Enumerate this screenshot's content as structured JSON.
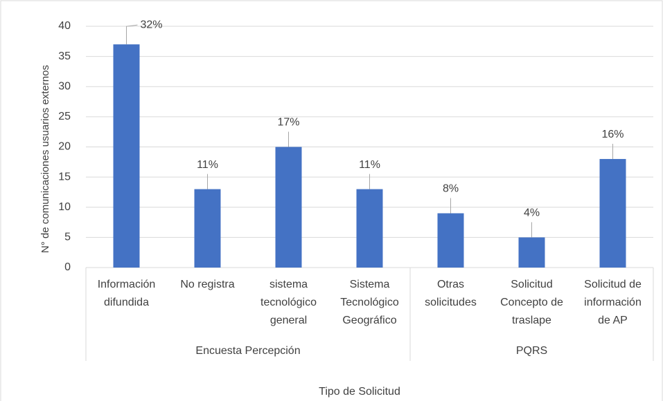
{
  "chart_data": {
    "type": "bar",
    "groups": [
      {
        "label": "Encuesta Percepción",
        "categories": [
          [
            "Información",
            "difundida"
          ],
          [
            "No registra"
          ],
          [
            "sistema",
            "tecnológico",
            "general"
          ],
          [
            "Sistema",
            "Tecnológico",
            "Geográfico"
          ]
        ],
        "values": [
          37,
          13,
          20,
          13
        ],
        "share_labels": [
          "32%",
          "11%",
          "17%",
          "11%"
        ]
      },
      {
        "label": "PQRS",
        "categories": [
          [
            "Otras",
            "solicitudes"
          ],
          [
            "Solicitud",
            "Concepto de",
            "traslape"
          ],
          [
            "Solicitud de",
            "información",
            "de AP"
          ]
        ],
        "values": [
          9,
          5,
          18
        ],
        "share_labels": [
          "8%",
          "4%",
          "16%"
        ]
      }
    ],
    "color": "#4472c4",
    "x_label": "Tipo de Solicitud",
    "y_label": "N° de comunicaciones usuarios externos",
    "ylim": [
      0,
      40
    ],
    "yticks": [
      0,
      5,
      10,
      15,
      20,
      25,
      30,
      35,
      40
    ],
    "grid": true
  }
}
